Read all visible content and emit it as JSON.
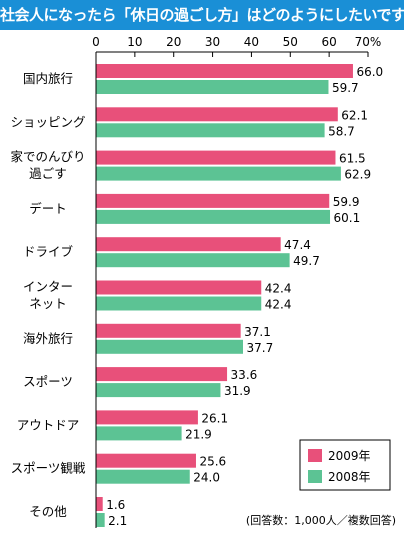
{
  "title": "社会人になったら「休日の過ごし方」はどのようにしたいですか?",
  "note": "(回答数：1,000人／複数回答)",
  "colors": {
    "title_bg": "#1a8fd6",
    "series_2009": "#e8507a",
    "series_2008": "#5cc394"
  },
  "chart_data": {
    "type": "bar",
    "orientation": "horizontal",
    "categories": [
      [
        "国内旅行"
      ],
      [
        "ショッピング"
      ],
      [
        "家でのんびり",
        "過ごす"
      ],
      [
        "デート"
      ],
      [
        "ドライブ"
      ],
      [
        "インター",
        "ネット"
      ],
      [
        "海外旅行"
      ],
      [
        "スポーツ"
      ],
      [
        "アウトドア"
      ],
      [
        "スポーツ観戦"
      ],
      [
        "その他"
      ]
    ],
    "series": [
      {
        "name": "2009年",
        "values": [
          66.0,
          62.1,
          61.5,
          59.9,
          47.4,
          42.4,
          37.1,
          33.6,
          26.1,
          25.6,
          1.6
        ]
      },
      {
        "name": "2008年",
        "values": [
          59.7,
          58.7,
          62.9,
          60.1,
          49.7,
          42.4,
          37.7,
          31.9,
          21.9,
          24.0,
          2.1
        ]
      }
    ],
    "xlim": [
      0,
      70
    ],
    "ticks": [
      "0",
      "10",
      "20",
      "30",
      "40",
      "50",
      "60",
      "70%"
    ],
    "legend_position": "bottom-right",
    "grid": false
  }
}
